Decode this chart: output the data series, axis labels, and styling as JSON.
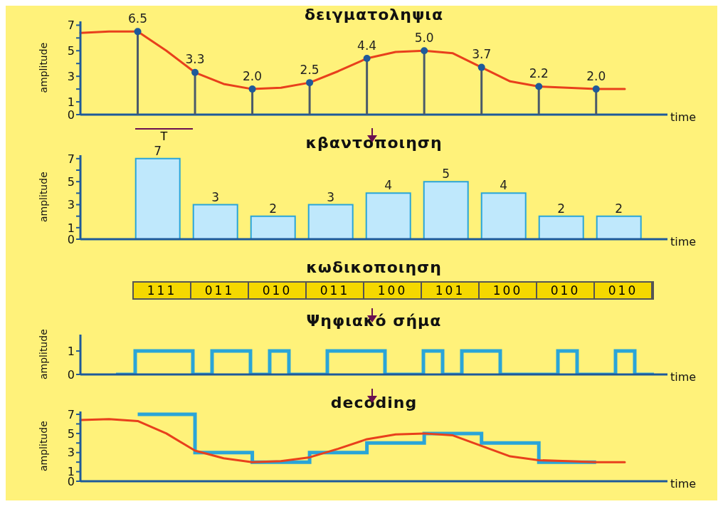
{
  "chart_data": [
    {
      "type": "lollipop",
      "title": "δειγματοληψια",
      "xlabel": "time",
      "ylabel": "amplitude",
      "categories": [
        null,
        null,
        null,
        null,
        null,
        null,
        null,
        null,
        null,
        null,
        null,
        null,
        null,
        null,
        null,
        null,
        null,
        null,
        null,
        null
      ],
      "ylim": [
        0,
        7.3
      ],
      "yticks": [
        0,
        1,
        {
          "value": 2,
          "label": null
        },
        3,
        {
          "value": 4,
          "label": null
        },
        5,
        {
          "value": 6,
          "label": null
        },
        7
      ],
      "tick_labels": "y",
      "annotations": [
        "T"
      ],
      "series": [
        {
          "type": "line",
          "color": "#e8401c",
          "values": [
            6.4,
            6.5,
            6.5,
            5.0,
            3.3,
            2.4,
            2.0,
            2.1,
            2.5,
            3.4,
            4.4,
            4.9,
            5.0,
            4.8,
            3.7,
            2.6,
            2.2,
            2.1,
            2.0,
            2.0
          ]
        },
        {
          "type": "lollipop",
          "marker": "circle",
          "color": "#1e5a9a",
          "values": [
            null,
            null,
            6.5,
            null,
            3.3,
            null,
            2.0,
            null,
            2.5,
            null,
            4.4,
            null,
            5.0,
            null,
            3.7,
            null,
            2.2,
            null,
            2.0,
            null
          ],
          "value_labels": [
            null,
            null,
            "6.5",
            null,
            "3.3",
            null,
            "2.0",
            null,
            "2.5",
            null,
            "4.4",
            null,
            "5.0",
            null,
            "3.7",
            null,
            "2.2",
            null,
            "2.0",
            null
          ]
        }
      ]
    },
    {
      "type": "bar",
      "title": "κβαντοποιηση",
      "xlabel": "time",
      "ylabel": "amplitude",
      "categories": [
        null,
        null,
        null,
        null,
        null,
        null,
        null,
        null,
        null
      ],
      "values": [
        7,
        3,
        2,
        3,
        4,
        5,
        4,
        2,
        2
      ],
      "color": "#bfe8fc",
      "ylim": [
        0,
        7.3
      ],
      "yticks": [
        0,
        1,
        {
          "value": 2,
          "label": null
        },
        3,
        {
          "value": 4,
          "label": null
        },
        5,
        {
          "value": 6,
          "label": null
        },
        7
      ],
      "tick_labels": "y",
      "data_labels": true
    },
    {
      "type": "other",
      "title": "κωδικοποιηση",
      "annotations": [
        "111",
        "011",
        "010",
        "011",
        "100",
        "101",
        "100",
        "010",
        "010"
      ]
    },
    {
      "type": "step",
      "title": "Ψηφιακό σήμα",
      "xlabel": "time",
      "ylabel": "amplitude",
      "categories": [
        null,
        null,
        null,
        null,
        null,
        null,
        null,
        null,
        null,
        null,
        null,
        null,
        null,
        null,
        null,
        null,
        null,
        null,
        null,
        null,
        null,
        null,
        null,
        null,
        null,
        null,
        null,
        null,
        null
      ],
      "values": [
        0,
        1,
        1,
        1,
        0,
        1,
        1,
        0,
        1,
        0,
        0,
        1,
        1,
        1,
        0,
        0,
        1,
        0,
        1,
        1,
        0,
        0,
        0,
        1,
        0,
        0,
        1,
        0,
        0
      ],
      "color": "#2aa5d8",
      "ylim": [
        0,
        1.7
      ],
      "yticks": [
        0,
        1
      ],
      "tick_labels": "y"
    },
    {
      "type": "step",
      "title": "decoding",
      "xlabel": "time",
      "ylabel": "amplitude",
      "categories": [
        null,
        null,
        null,
        null,
        null,
        null,
        null,
        null,
        null,
        null,
        null,
        null,
        null,
        null,
        null,
        null,
        null,
        null,
        null,
        null
      ],
      "ylim": [
        0,
        7.3
      ],
      "yticks": [
        0,
        1,
        {
          "value": 2,
          "label": null
        },
        3,
        {
          "value": 4,
          "label": null
        },
        5,
        {
          "value": 6,
          "label": null
        },
        7
      ],
      "tick_labels": "y",
      "series": [
        {
          "type": "step",
          "color": "#2aa5d8",
          "values": [
            null,
            null,
            7,
            7,
            3,
            3,
            2,
            2,
            3,
            3,
            4,
            4,
            5,
            5,
            4,
            4,
            2,
            2,
            2,
            null
          ]
        },
        {
          "type": "line",
          "color": "#e8401c",
          "values": [
            6.4,
            6.5,
            6.3,
            5.0,
            3.2,
            2.4,
            2.0,
            2.1,
            2.5,
            3.4,
            4.4,
            4.9,
            5.0,
            4.8,
            3.7,
            2.6,
            2.2,
            2.1,
            2.0,
            2.0
          ]
        }
      ]
    }
  ]
}
